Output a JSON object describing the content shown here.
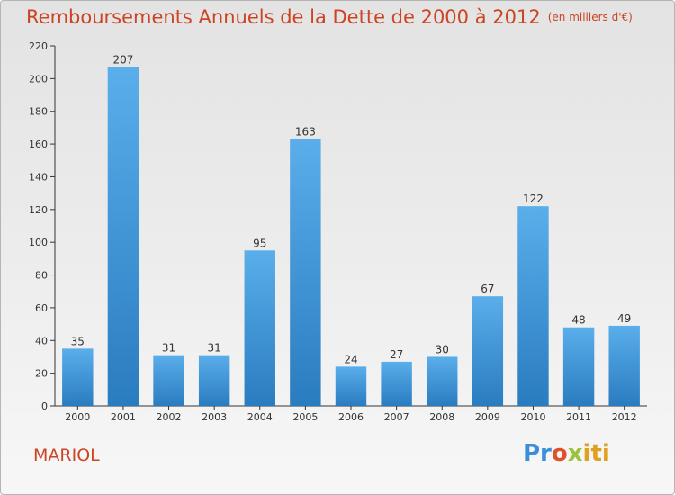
{
  "header": {
    "title": "Remboursements Annuels de la Dette de 2000 à 2012",
    "subtitle": "(en milliers d'€)"
  },
  "footer": {
    "commune": "MARIOL",
    "logo_text": "Proxiti"
  },
  "colors": {
    "title": "#cc4422",
    "bar_top": "#5aaeea",
    "bar_bottom": "#2a7cc0"
  },
  "chart_data": {
    "type": "bar",
    "title": "Remboursements Annuels de la Dette de 2000 à 2012",
    "subtitle": "(en milliers d'€)",
    "categories": [
      "2000",
      "2001",
      "2002",
      "2003",
      "2004",
      "2005",
      "2006",
      "2007",
      "2008",
      "2009",
      "2010",
      "2011",
      "2012"
    ],
    "values": [
      35,
      207,
      31,
      31,
      95,
      163,
      24,
      27,
      30,
      67,
      122,
      48,
      49
    ],
    "ylim": [
      0,
      220
    ],
    "yticks": [
      0,
      20,
      40,
      60,
      80,
      100,
      120,
      140,
      160,
      180,
      200,
      220
    ],
    "grid": false,
    "data_labels": true
  }
}
